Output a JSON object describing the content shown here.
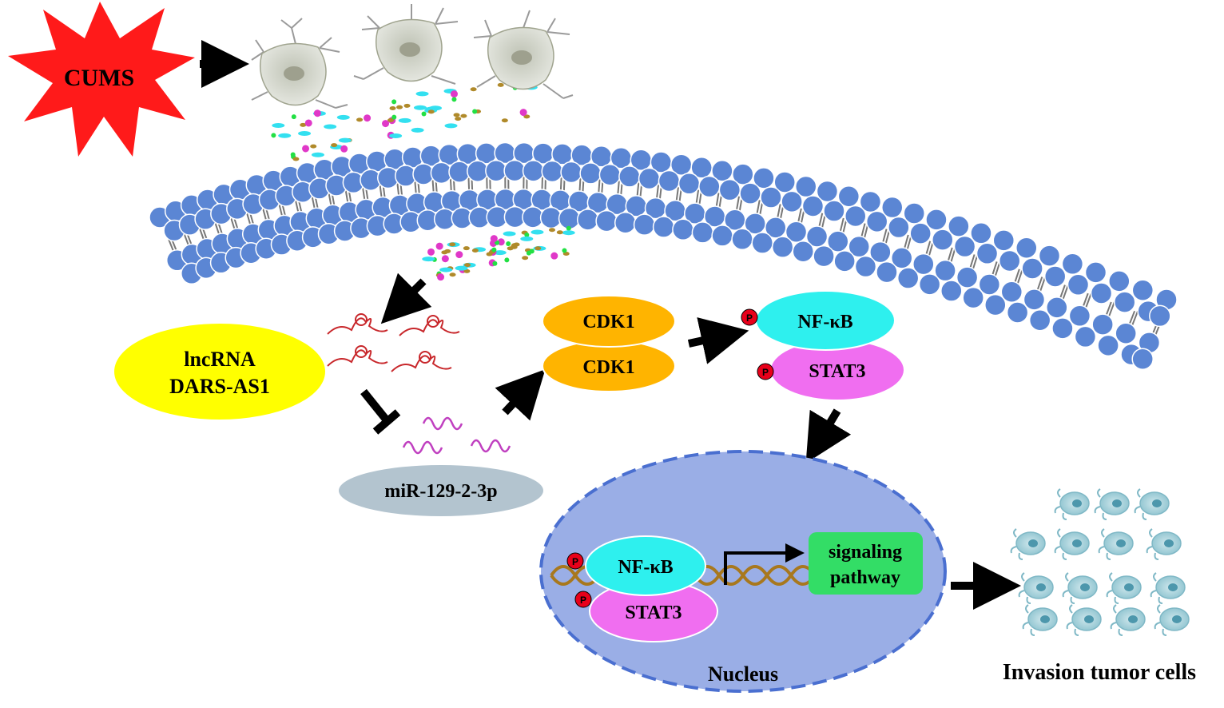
{
  "stressor": {
    "label": "CUMS"
  },
  "lncrna": {
    "line1": "lncRNA",
    "line2": "DARS-AS1"
  },
  "mirna": {
    "label": "miR-129-2-3p"
  },
  "cdk1": {
    "top": "CDK1",
    "bottom": "CDK1"
  },
  "cytoplasm_complex": {
    "nfkb": "NF-κB",
    "stat3": "STAT3",
    "phospho": "P"
  },
  "nucleus": {
    "label": "Nucleus",
    "nfkb": "NF-κB",
    "stat3": "STAT3",
    "phospho": "P",
    "pathway_line1": "signaling",
    "pathway_line2": "pathway"
  },
  "tumor": {
    "label": "Invasion tumor cells"
  },
  "colors": {
    "star": "#ff1a1a",
    "membrane_head": "#5b86d4",
    "lncrna": "#ffff00",
    "mirna": "#b3c4cf",
    "cdk1": "#ffb400",
    "nfkb": "#2ef0ee",
    "stat3": "#f06ef0",
    "nucleus": "#9aaee6",
    "pathway": "#33dd66",
    "phospho": "#e8001a",
    "dna": "#a8781e",
    "tumor_cell": "#a9d3dc"
  }
}
